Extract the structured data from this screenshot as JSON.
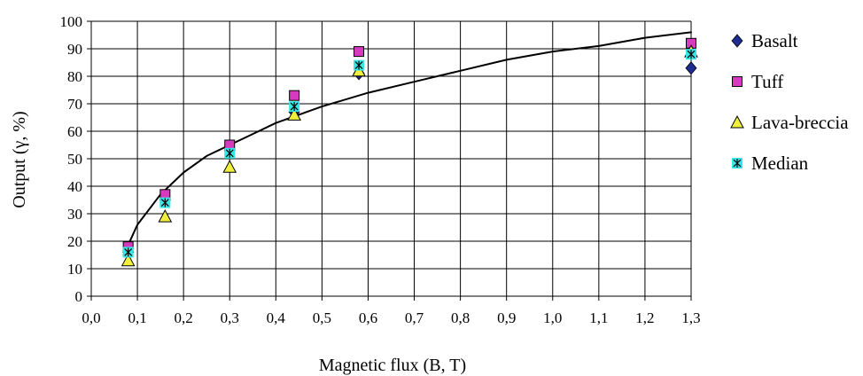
{
  "chart_data": {
    "type": "scatter",
    "title": "",
    "xlabel": "Magnetic flux (B, T)",
    "ylabel": "Output (γ, %)",
    "xlim": [
      0.0,
      1.3
    ],
    "ylim": [
      0,
      100
    ],
    "x_ticks": [
      "0,0",
      "0,1",
      "0,2",
      "0,3",
      "0,4",
      "0,5",
      "0,6",
      "0,7",
      "0,8",
      "0,9",
      "1,0",
      "1,1",
      "1,2",
      "1,3"
    ],
    "y_ticks": [
      "0",
      "10",
      "20",
      "30",
      "40",
      "50",
      "60",
      "70",
      "80",
      "90",
      "100"
    ],
    "grid": true,
    "legend_position": "right",
    "series": [
      {
        "name": "Basalt",
        "marker": "diamond",
        "color": "#1f2b8f",
        "x": [
          0.08,
          0.16,
          0.3,
          0.44,
          0.58,
          1.3
        ],
        "y": [
          16,
          35,
          53,
          67,
          81,
          83
        ]
      },
      {
        "name": "Tuff",
        "marker": "square",
        "color": "#d63bbf",
        "x": [
          0.08,
          0.16,
          0.3,
          0.44,
          0.58,
          1.3
        ],
        "y": [
          18,
          37,
          55,
          73,
          89,
          92
        ]
      },
      {
        "name": "Lava-breccia",
        "marker": "triangle",
        "color": "#f0f03c",
        "x": [
          0.08,
          0.16,
          0.3,
          0.44,
          0.58,
          1.3
        ],
        "y": [
          13,
          29,
          47,
          66,
          82,
          89
        ]
      },
      {
        "name": "Median",
        "marker": "star-square",
        "color": "#36e6e6",
        "x": [
          0.08,
          0.16,
          0.3,
          0.44,
          0.58,
          1.3
        ],
        "y": [
          16,
          34,
          52,
          69,
          84,
          88
        ]
      }
    ],
    "trend_line": {
      "type": "power",
      "x": [
        0.07,
        0.1,
        0.15,
        0.2,
        0.25,
        0.3,
        0.35,
        0.4,
        0.45,
        0.5,
        0.6,
        0.7,
        0.8,
        0.9,
        1.0,
        1.1,
        1.2,
        1.3
      ],
      "y": [
        15,
        26,
        37,
        45,
        51,
        55,
        59,
        63,
        66,
        69,
        74,
        78,
        82,
        86,
        89,
        91,
        94,
        96
      ]
    }
  }
}
